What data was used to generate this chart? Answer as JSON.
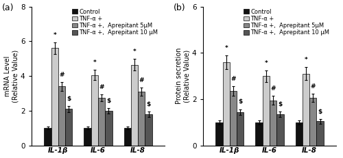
{
  "panel_a": {
    "title": "(a)",
    "ylabel": "mRNA Level\n(Relative Value)",
    "ylim": [
      0,
      8
    ],
    "yticks": [
      0,
      2,
      4,
      6,
      8
    ],
    "groups": [
      "IL-1β",
      "IL-6",
      "IL-8"
    ],
    "values": [
      [
        1.0,
        5.6,
        3.4,
        2.1
      ],
      [
        1.0,
        4.05,
        2.75,
        2.0
      ],
      [
        1.0,
        4.65,
        3.1,
        1.8
      ]
    ],
    "errors": [
      [
        0.08,
        0.35,
        0.25,
        0.18
      ],
      [
        0.08,
        0.3,
        0.2,
        0.15
      ],
      [
        0.08,
        0.35,
        0.22,
        0.15
      ]
    ],
    "sig_labels": [
      [
        "",
        "*",
        "#",
        "$"
      ],
      [
        "",
        "*",
        "#",
        "$"
      ],
      [
        "",
        "*",
        "#",
        "$"
      ]
    ]
  },
  "panel_b": {
    "title": "(b)",
    "ylabel": "Protein secretion\n(Relative Value)",
    "ylim": [
      0,
      6
    ],
    "yticks": [
      0,
      2,
      4,
      6
    ],
    "groups": [
      "IL-1β",
      "IL-6",
      "IL-8"
    ],
    "values": [
      [
        1.0,
        3.6,
        2.35,
        1.45
      ],
      [
        1.0,
        3.0,
        1.95,
        1.35
      ],
      [
        1.0,
        3.1,
        2.05,
        1.05
      ]
    ],
    "errors": [
      [
        0.08,
        0.3,
        0.2,
        0.12
      ],
      [
        0.08,
        0.25,
        0.2,
        0.12
      ],
      [
        0.08,
        0.28,
        0.18,
        0.1
      ]
    ],
    "sig_labels": [
      [
        "",
        "*",
        "#",
        "$"
      ],
      [
        "",
        "*",
        "#",
        "$"
      ],
      [
        "",
        "*",
        "#",
        "$"
      ]
    ]
  },
  "legend_labels": [
    "Control",
    "TNF-α +",
    "TNF-α +,  Aprepitant 5μM",
    "TNF-α +,  Aprepitant 10 μM"
  ],
  "bar_colors": [
    "#111111",
    "#cccccc",
    "#888888",
    "#555555"
  ],
  "bar_width": 0.15,
  "sig_fontsize": 6.5,
  "tick_fontsize": 7.5,
  "label_fontsize": 7,
  "legend_fontsize": 6.0
}
